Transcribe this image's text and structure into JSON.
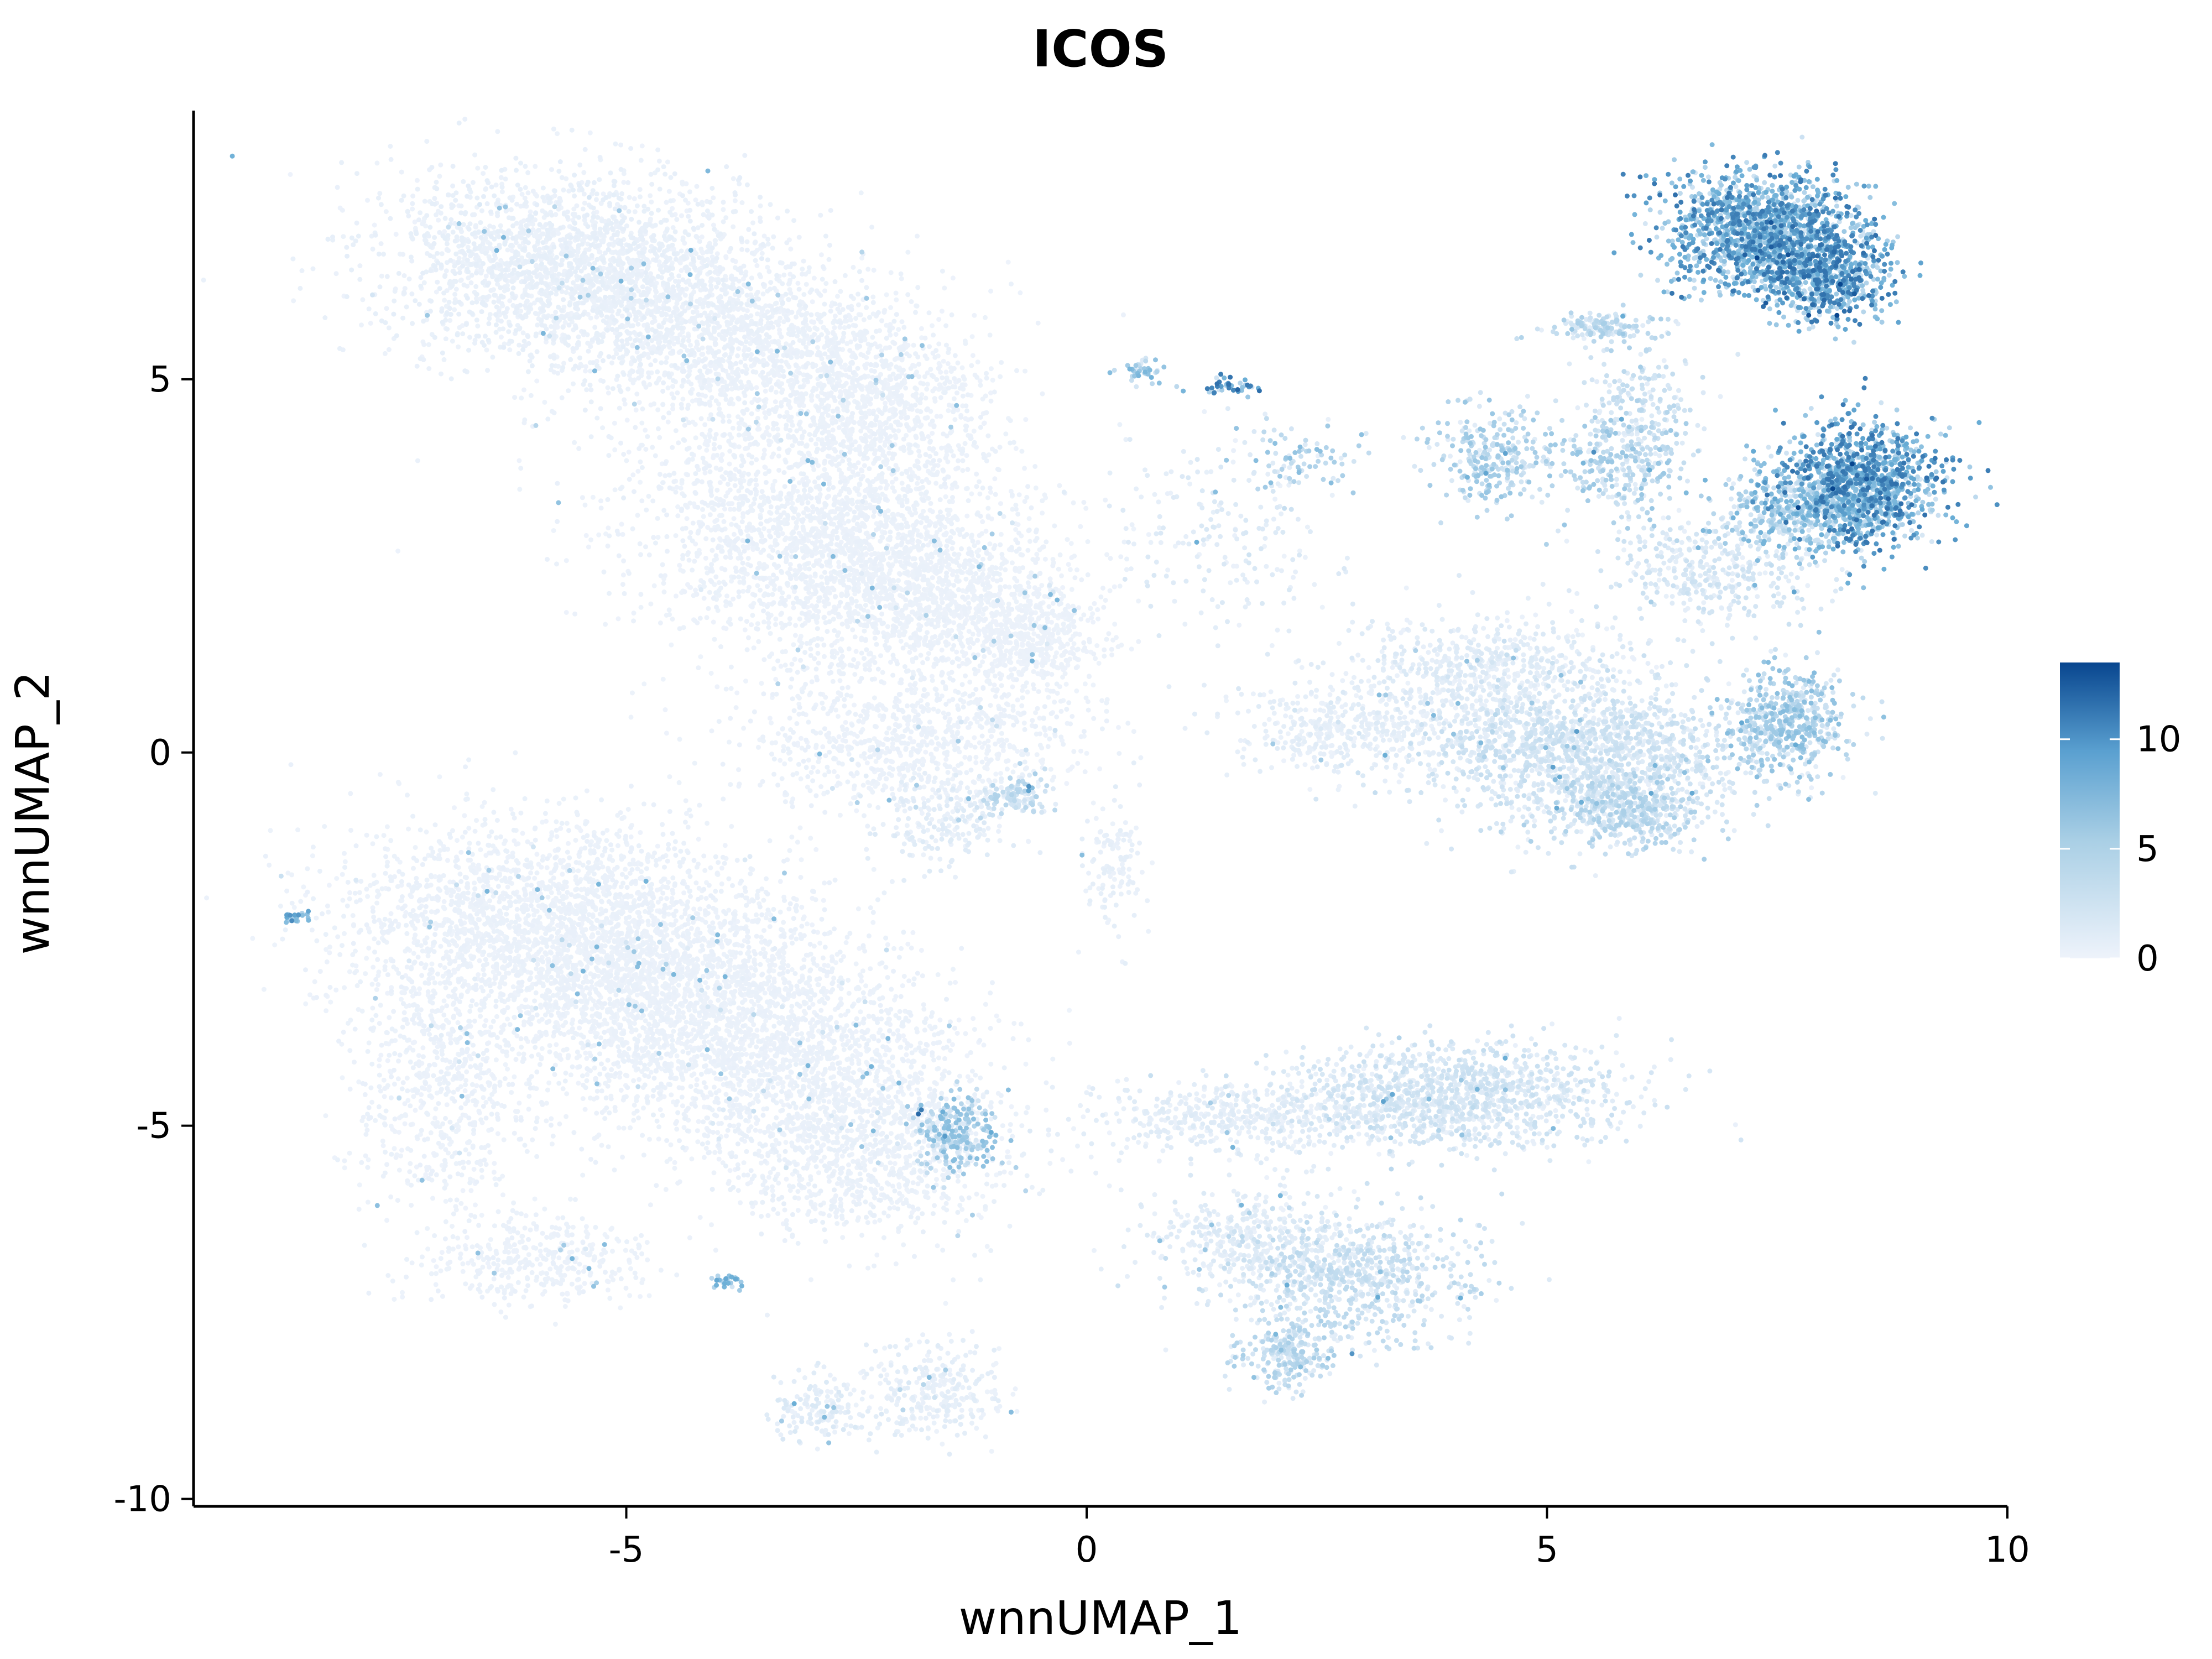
{
  "chart_data": {
    "type": "scatter",
    "title": "ICOS",
    "xlabel": "wnnUMAP_1",
    "ylabel": "wnnUMAP_2",
    "xlim": [
      -9.7,
      10.0
    ],
    "ylim": [
      -10.1,
      8.6
    ],
    "x_ticks": [
      -5,
      0,
      5,
      10
    ],
    "x_tick_labels": [
      "-5",
      "0",
      "5",
      "10"
    ],
    "y_ticks": [
      -10,
      -5,
      0,
      5
    ],
    "y_tick_labels": [
      "-10",
      "-5",
      "0",
      "5"
    ],
    "grid": false,
    "legend": {
      "position": "right",
      "type": "colorbar",
      "range": [
        0,
        13.5
      ],
      "ticks": [
        0,
        5,
        10
      ],
      "tick_labels": [
        "0",
        "5",
        "10"
      ],
      "low_color": "#eef3fb",
      "mid_color": "#6aaed6",
      "high_color": "#08468f"
    },
    "clusters": [
      {
        "x": -6.0,
        "y": 6.6,
        "sx": 0.9,
        "sy": 0.6,
        "n": 1500,
        "expr": 0.25
      },
      {
        "x": -4.8,
        "y": 6.2,
        "sx": 0.8,
        "sy": 0.7,
        "n": 1200,
        "expr": 0.2
      },
      {
        "x": -3.6,
        "y": 5.5,
        "sx": 0.8,
        "sy": 0.6,
        "n": 1100,
        "expr": 0.15
      },
      {
        "x": -2.3,
        "y": 4.6,
        "sx": 0.7,
        "sy": 0.6,
        "n": 900,
        "expr": 0.12
      },
      {
        "x": -3.0,
        "y": 3.0,
        "sx": 1.0,
        "sy": 0.8,
        "n": 1800,
        "expr": 0.15
      },
      {
        "x": -1.8,
        "y": 2.2,
        "sx": 0.8,
        "sy": 0.6,
        "n": 1300,
        "expr": 0.12
      },
      {
        "x": -0.6,
        "y": 1.5,
        "sx": 0.4,
        "sy": 0.35,
        "n": 500,
        "expr": 0.1
      },
      {
        "x": -1.8,
        "y": 0.2,
        "sx": 0.9,
        "sy": 0.5,
        "n": 900,
        "expr": 0.15
      },
      {
        "x": -1.6,
        "y": -0.9,
        "sx": 0.35,
        "sy": 0.3,
        "n": 200,
        "expr": 0.5
      },
      {
        "x": -0.8,
        "y": -0.6,
        "sx": 0.2,
        "sy": 0.15,
        "n": 120,
        "expr": 1.8
      },
      {
        "x": -6.0,
        "y": -2.2,
        "sx": 1.1,
        "sy": 0.7,
        "n": 1800,
        "expr": 0.15
      },
      {
        "x": -4.8,
        "y": -3.1,
        "sx": 1.1,
        "sy": 0.8,
        "n": 2200,
        "expr": 0.15
      },
      {
        "x": -3.3,
        "y": -4.0,
        "sx": 1.0,
        "sy": 0.7,
        "n": 1500,
        "expr": 0.15
      },
      {
        "x": -2.4,
        "y": -5.3,
        "sx": 0.8,
        "sy": 0.6,
        "n": 1100,
        "expr": 0.2
      },
      {
        "x": -7.0,
        "y": -4.5,
        "sx": 0.5,
        "sy": 0.9,
        "n": 600,
        "expr": 0.15
      },
      {
        "x": -6.0,
        "y": -6.8,
        "sx": 0.6,
        "sy": 0.3,
        "n": 400,
        "expr": 0.15
      },
      {
        "x": -1.4,
        "y": -5.1,
        "sx": 0.25,
        "sy": 0.25,
        "n": 250,
        "expr": 3.0
      },
      {
        "x": -1.7,
        "y": -8.6,
        "sx": 0.4,
        "sy": 0.35,
        "n": 300,
        "expr": 0.4
      },
      {
        "x": -2.9,
        "y": -8.8,
        "sx": 0.25,
        "sy": 0.2,
        "n": 150,
        "expr": 0.6
      },
      {
        "x": -3.9,
        "y": -7.1,
        "sx": 0.08,
        "sy": 0.06,
        "n": 30,
        "expr": 4.0
      },
      {
        "x": 4.0,
        "y": -4.6,
        "sx": 0.9,
        "sy": 0.35,
        "n": 1200,
        "expr": 1.1
      },
      {
        "x": 1.8,
        "y": -4.9,
        "sx": 0.9,
        "sy": 0.25,
        "n": 500,
        "expr": 0.5
      },
      {
        "x": 2.9,
        "y": -7.0,
        "sx": 0.7,
        "sy": 0.4,
        "n": 700,
        "expr": 1.5
      },
      {
        "x": 2.2,
        "y": -8.0,
        "sx": 0.25,
        "sy": 0.25,
        "n": 250,
        "expr": 2.0
      },
      {
        "x": 1.8,
        "y": -6.5,
        "sx": 0.6,
        "sy": 0.35,
        "n": 400,
        "expr": 0.6
      },
      {
        "x": 7.3,
        "y": 7.0,
        "sx": 0.5,
        "sy": 0.4,
        "n": 1300,
        "expr": 5.8
      },
      {
        "x": 8.0,
        "y": 6.4,
        "sx": 0.35,
        "sy": 0.35,
        "n": 700,
        "expr": 6.2
      },
      {
        "x": 8.4,
        "y": 3.6,
        "sx": 0.45,
        "sy": 0.4,
        "n": 1100,
        "expr": 6.0
      },
      {
        "x": 7.8,
        "y": 3.3,
        "sx": 0.5,
        "sy": 0.3,
        "n": 500,
        "expr": 3.5
      },
      {
        "x": 7.6,
        "y": 0.4,
        "sx": 0.3,
        "sy": 0.35,
        "n": 500,
        "expr": 3.0
      },
      {
        "x": 5.5,
        "y": 0.0,
        "sx": 0.9,
        "sy": 0.5,
        "n": 1500,
        "expr": 1.2
      },
      {
        "x": 5.9,
        "y": -0.8,
        "sx": 0.4,
        "sy": 0.25,
        "n": 400,
        "expr": 2.0
      },
      {
        "x": 4.3,
        "y": 1.0,
        "sx": 0.8,
        "sy": 0.4,
        "n": 700,
        "expr": 0.6
      },
      {
        "x": 2.8,
        "y": 0.3,
        "sx": 0.6,
        "sy": 0.3,
        "n": 400,
        "expr": 0.4
      },
      {
        "x": 4.4,
        "y": 4.0,
        "sx": 0.35,
        "sy": 0.35,
        "n": 300,
        "expr": 2.5
      },
      {
        "x": 5.8,
        "y": 3.8,
        "sx": 0.35,
        "sy": 0.35,
        "n": 250,
        "expr": 2.5
      },
      {
        "x": 5.6,
        "y": 5.7,
        "sx": 0.3,
        "sy": 0.1,
        "n": 150,
        "expr": 2.0
      },
      {
        "x": 6.0,
        "y": 4.6,
        "sx": 0.3,
        "sy": 0.4,
        "n": 200,
        "expr": 1.5
      },
      {
        "x": 6.8,
        "y": 2.5,
        "sx": 0.6,
        "sy": 0.35,
        "n": 400,
        "expr": 1.0
      },
      {
        "x": 1.5,
        "y": 3.0,
        "sx": 0.6,
        "sy": 0.6,
        "n": 200,
        "expr": 0.6
      },
      {
        "x": 2.3,
        "y": 3.9,
        "sx": 0.3,
        "sy": 0.25,
        "n": 80,
        "expr": 3.0
      },
      {
        "x": 1.5,
        "y": 4.9,
        "sx": 0.25,
        "sy": 0.05,
        "n": 40,
        "expr": 6.5
      },
      {
        "x": 0.6,
        "y": 5.1,
        "sx": 0.12,
        "sy": 0.08,
        "n": 40,
        "expr": 3.5
      },
      {
        "x": 0.3,
        "y": -1.4,
        "sx": 0.15,
        "sy": 0.5,
        "n": 120,
        "expr": 0.3
      },
      {
        "x": -8.6,
        "y": -2.2,
        "sx": 0.08,
        "sy": 0.05,
        "n": 25,
        "expr": 5.0
      }
    ]
  }
}
